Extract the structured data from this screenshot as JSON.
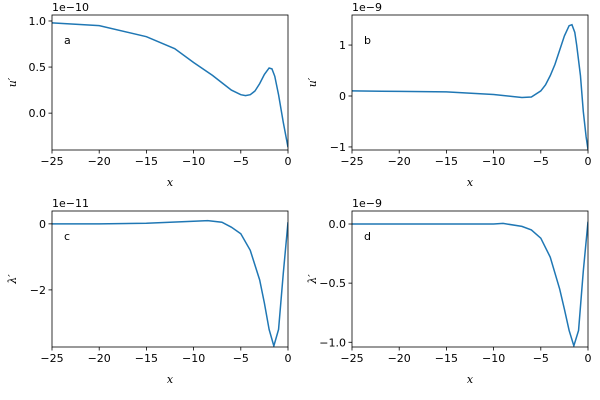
{
  "chart_data": [
    {
      "type": "line",
      "panel_label": "a",
      "offset_text": "1e−10",
      "xlabel": "x",
      "ylabel": "u′",
      "xlim": [
        -25,
        0
      ],
      "ylim": [
        -0.4,
        1.065
      ],
      "xticks": [
        {
          "value": -25,
          "label": "−25"
        },
        {
          "value": -20,
          "label": "−20"
        },
        {
          "value": -15,
          "label": "−15"
        },
        {
          "value": -10,
          "label": "−10"
        },
        {
          "value": -5,
          "label": "−5"
        },
        0
      ],
      "yticks": [
        {
          "value": 0,
          "label": "0.0"
        },
        0.5,
        {
          "value": 1,
          "label": "1.0"
        }
      ],
      "color": "#1f77b4",
      "x": [
        -25,
        -20,
        -15,
        -12,
        -10,
        -8,
        -7,
        -6,
        -5,
        -4.5,
        -4,
        -3.5,
        -3,
        -2.5,
        -2,
        -1.7,
        -1.4,
        -1,
        -0.5,
        0
      ],
      "values": [
        0.98,
        0.95,
        0.83,
        0.7,
        0.55,
        0.41,
        0.33,
        0.25,
        0.2,
        0.19,
        0.2,
        0.24,
        0.32,
        0.42,
        0.49,
        0.48,
        0.4,
        0.2,
        -0.1,
        -0.37
      ]
    },
    {
      "type": "line",
      "panel_label": "b",
      "offset_text": "1e−9",
      "xlabel": "x",
      "ylabel": "u′",
      "xlim": [
        -25,
        0
      ],
      "ylim": [
        -1.06,
        1.59
      ],
      "xticks": [
        {
          "value": -25,
          "label": "−25"
        },
        {
          "value": -20,
          "label": "−20"
        },
        {
          "value": -15,
          "label": "−15"
        },
        {
          "value": -10,
          "label": "−10"
        },
        {
          "value": -5,
          "label": "−5"
        },
        0
      ],
      "yticks": [
        {
          "value": -1,
          "label": "−1"
        },
        0,
        1
      ],
      "color": "#1f77b4",
      "x": [
        -25,
        -20,
        -15,
        -10,
        -8,
        -7,
        -6,
        -5,
        -4.5,
        -4,
        -3.5,
        -3,
        -2.5,
        -2,
        -1.7,
        -1.4,
        -1.2,
        -0.8,
        -0.5,
        -0.2,
        0
      ],
      "values": [
        0.1,
        0.09,
        0.08,
        0.03,
        -0.01,
        -0.03,
        -0.02,
        0.1,
        0.22,
        0.4,
        0.62,
        0.9,
        1.18,
        1.38,
        1.4,
        1.25,
        1.0,
        0.4,
        -0.3,
        -0.8,
        -1.05
      ]
    },
    {
      "type": "line",
      "panel_label": "c",
      "offset_text": "1e−11",
      "xlabel": "x",
      "ylabel": "λ′",
      "xlim": [
        -25,
        0
      ],
      "ylim": [
        -3.73,
        0.39
      ],
      "xticks": [
        {
          "value": -25,
          "label": "−25"
        },
        {
          "value": -20,
          "label": "−20"
        },
        {
          "value": -15,
          "label": "−15"
        },
        {
          "value": -10,
          "label": "−10"
        },
        {
          "value": -5,
          "label": "−5"
        },
        0
      ],
      "yticks": [
        {
          "value": -2,
          "label": "−2"
        },
        0
      ],
      "color": "#1f77b4",
      "x": [
        -25,
        -20,
        -15,
        -10,
        -8.5,
        -7,
        -6,
        -5,
        -4,
        -3,
        -2.5,
        -2,
        -1.5,
        -1,
        -0.5,
        0
      ],
      "values": [
        0,
        0,
        0.02,
        0.08,
        0.1,
        0.05,
        -0.1,
        -0.3,
        -0.8,
        -1.7,
        -2.4,
        -3.2,
        -3.7,
        -3.2,
        -1.5,
        0.05
      ]
    },
    {
      "type": "line",
      "panel_label": "d",
      "offset_text": "1e−9",
      "xlabel": "x",
      "ylabel": "λ′",
      "xlim": [
        -25,
        0
      ],
      "ylim": [
        -1.04,
        0.11
      ],
      "xticks": [
        {
          "value": -25,
          "label": "−25"
        },
        {
          "value": -20,
          "label": "−20"
        },
        {
          "value": -15,
          "label": "−15"
        },
        {
          "value": -10,
          "label": "−10"
        },
        {
          "value": -5,
          "label": "−5"
        },
        0
      ],
      "yticks": [
        {
          "value": -1,
          "label": "−1.0"
        },
        {
          "value": -0.5,
          "label": "−0.5"
        },
        {
          "value": 0,
          "label": "0.0"
        }
      ],
      "color": "#1f77b4",
      "x": [
        -25,
        -20,
        -15,
        -10,
        -9,
        -7,
        -6,
        -5,
        -4,
        -3,
        -2.5,
        -2,
        -1.5,
        -1,
        -0.5,
        0
      ],
      "values": [
        0,
        0,
        0,
        0,
        0.005,
        -0.02,
        -0.05,
        -0.12,
        -0.28,
        -0.55,
        -0.72,
        -0.9,
        -1.03,
        -0.9,
        -0.4,
        0.02
      ]
    }
  ]
}
